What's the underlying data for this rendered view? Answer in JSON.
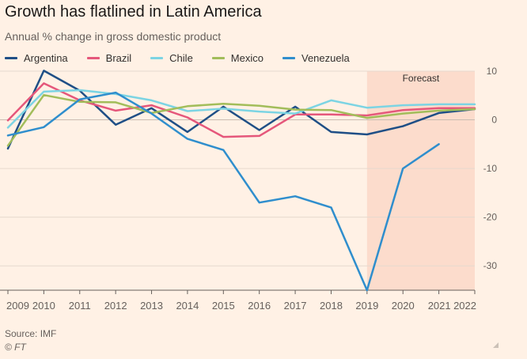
{
  "title": "Growth has flatlined in Latin America",
  "subtitle": "Annual % change in gross domestic product",
  "source": "Source: IMF",
  "copyright": "© FT",
  "chart_data": {
    "type": "line",
    "x": [
      2009,
      2010,
      2011,
      2012,
      2013,
      2014,
      2015,
      2016,
      2017,
      2018,
      2019,
      2020,
      2021,
      2022
    ],
    "x_tick_labels": [
      "2009",
      "2010",
      "2011",
      "2012",
      "2013",
      "2014",
      "2015",
      "2016",
      "2017",
      "2018",
      "2019",
      "2020",
      "2021",
      "2022"
    ],
    "y_ticks": [
      10,
      0,
      -10,
      -20,
      -30
    ],
    "ylim": [
      -35,
      10
    ],
    "xlim": [
      2009,
      2022
    ],
    "grid": true,
    "legend_position": "top",
    "y_axis_side": "right",
    "forecast_region": {
      "label": "Forecast",
      "x_start": 2019,
      "x_end": 2022,
      "color": "#fcdccc"
    },
    "series": [
      {
        "name": "Argentina",
        "color": "#1f4f86",
        "x": [
          2009,
          2010,
          2011,
          2012,
          2013,
          2014,
          2015,
          2016,
          2017,
          2018,
          2019,
          2020,
          2021,
          2022
        ],
        "values": [
          -5.9,
          10.1,
          6.0,
          -1.0,
          2.4,
          -2.5,
          2.7,
          -2.1,
          2.7,
          -2.5,
          -3.0,
          -1.3,
          1.4,
          2.2
        ]
      },
      {
        "name": "Brazil",
        "color": "#e5577b",
        "x": [
          2009,
          2010,
          2011,
          2012,
          2013,
          2014,
          2015,
          2016,
          2017,
          2018,
          2019,
          2020,
          2021,
          2022
        ],
        "values": [
          -0.1,
          7.5,
          4.0,
          1.9,
          3.0,
          0.5,
          -3.5,
          -3.3,
          1.1,
          1.1,
          0.9,
          2.0,
          2.4,
          2.4
        ]
      },
      {
        "name": "Chile",
        "color": "#7cd4e3",
        "x": [
          2009,
          2010,
          2011,
          2012,
          2013,
          2014,
          2015,
          2016,
          2017,
          2018,
          2019,
          2020,
          2021,
          2022
        ],
        "values": [
          -1.6,
          5.8,
          6.1,
          5.3,
          4.0,
          1.8,
          2.3,
          1.7,
          1.3,
          4.0,
          2.5,
          3.0,
          3.2,
          3.2
        ]
      },
      {
        "name": "Mexico",
        "color": "#a2bd5a",
        "x": [
          2009,
          2010,
          2011,
          2012,
          2013,
          2014,
          2015,
          2016,
          2017,
          2018,
          2019,
          2020,
          2021,
          2022
        ],
        "values": [
          -5.3,
          5.1,
          3.7,
          3.6,
          1.4,
          2.8,
          3.3,
          2.9,
          2.1,
          2.0,
          0.4,
          1.3,
          1.9,
          2.2
        ]
      },
      {
        "name": "Venezuela",
        "color": "#2f8ecd",
        "x": [
          2009,
          2010,
          2011,
          2012,
          2013,
          2014,
          2015,
          2016,
          2017,
          2018,
          2019,
          2020,
          2021
        ],
        "values": [
          -3.2,
          -1.5,
          4.2,
          5.6,
          1.3,
          -3.9,
          -6.2,
          -17.0,
          -15.7,
          -18.0,
          -35.0,
          -10.0,
          -5.0
        ]
      }
    ]
  }
}
